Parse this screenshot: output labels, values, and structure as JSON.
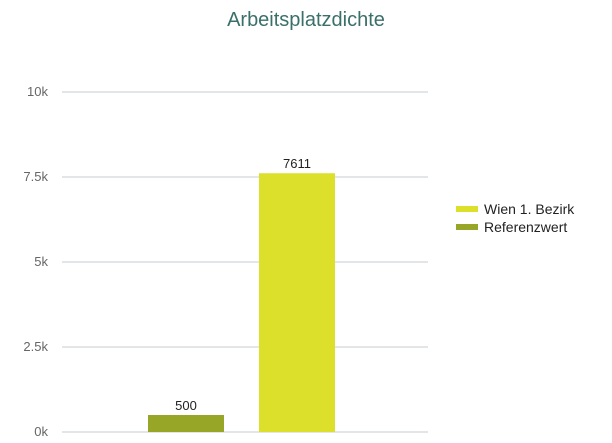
{
  "chart_data": {
    "type": "bar",
    "title": "Arbeitsplatzdichte",
    "xlabel": "",
    "ylabel": "",
    "ylim": [
      0,
      10000
    ],
    "yticks": [
      0,
      2500,
      5000,
      7500,
      10000
    ],
    "ytick_labels": [
      "0k",
      "2.5k",
      "5k",
      "7.5k",
      "10k"
    ],
    "grid": true,
    "legend_position": "right",
    "series": [
      {
        "name": "Referenzwert",
        "value": 500,
        "label": "500",
        "color": "#97a626"
      },
      {
        "name": "Wien 1. Bezirk",
        "value": 7611,
        "label": "7611",
        "color": "#dde02b"
      }
    ],
    "legend": [
      {
        "name": "Wien 1. Bezirk",
        "color": "#dde02b"
      },
      {
        "name": "Referenzwert",
        "color": "#97a626"
      }
    ]
  },
  "colors": {
    "title": "#3b6f6a",
    "tick_text": "#666666",
    "grid": "#c5ccd3",
    "baseline": "#c5ccd3",
    "data_label": "#222222",
    "legend_text": "#222222"
  }
}
